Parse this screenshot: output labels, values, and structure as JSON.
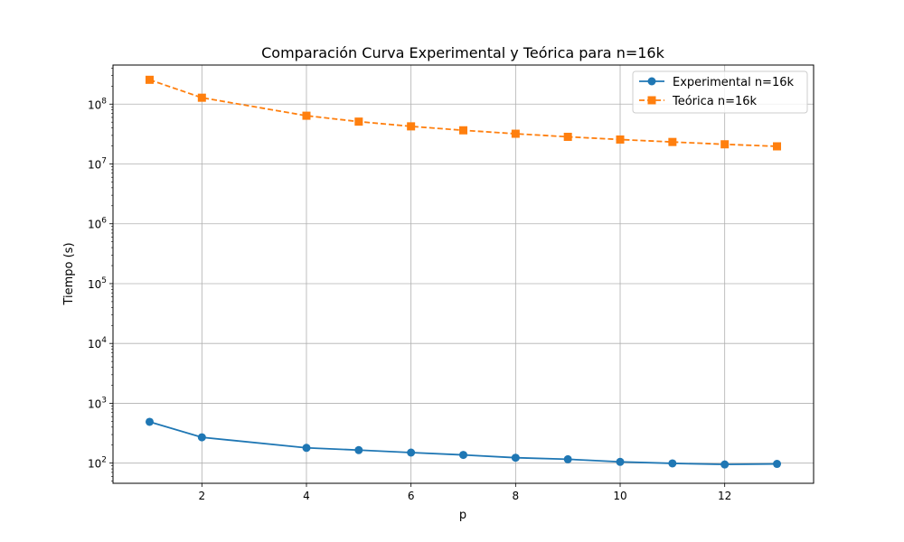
{
  "chart_data": {
    "type": "line",
    "title": "Comparación Curva Experimental y Teórica para n=16k",
    "xlabel": "p",
    "ylabel": "Tiempo (s)",
    "yscale": "log",
    "xlim": [
      0.3,
      13.7
    ],
    "ylim": [
      46,
      450000000
    ],
    "grid": true,
    "legend_position": "top-right",
    "x_ticks": [
      2,
      4,
      6,
      8,
      10,
      12
    ],
    "y_ticks": [
      {
        "value": 100,
        "base": "10",
        "exp": "2"
      },
      {
        "value": 1000,
        "base": "10",
        "exp": "3"
      },
      {
        "value": 10000,
        "base": "10",
        "exp": "4"
      },
      {
        "value": 100000,
        "base": "10",
        "exp": "5"
      },
      {
        "value": 1000000,
        "base": "10",
        "exp": "6"
      },
      {
        "value": 10000000,
        "base": "10",
        "exp": "7"
      },
      {
        "value": 100000000,
        "base": "10",
        "exp": "8"
      }
    ],
    "series": [
      {
        "name": "Experimental n=16k",
        "color": "#1f77b4",
        "line_style": "solid",
        "marker": "circle",
        "x": [
          1,
          2,
          4,
          5,
          6,
          7,
          8,
          9,
          10,
          11,
          12,
          13
        ],
        "y": [
          490,
          270,
          180,
          165,
          150,
          137,
          123,
          116,
          105,
          99,
          95,
          97
        ]
      },
      {
        "name": "Teórica n=16k",
        "color": "#ff7f0e",
        "line_style": "dashed",
        "marker": "square",
        "x": [
          1,
          2,
          4,
          5,
          6,
          7,
          8,
          9,
          10,
          11,
          12,
          13
        ],
        "y": [
          255000000,
          128000000,
          64000000,
          51000000,
          42500000,
          36500000,
          32000000,
          28400000,
          25600000,
          23300000,
          21300000,
          19700000
        ]
      }
    ]
  }
}
